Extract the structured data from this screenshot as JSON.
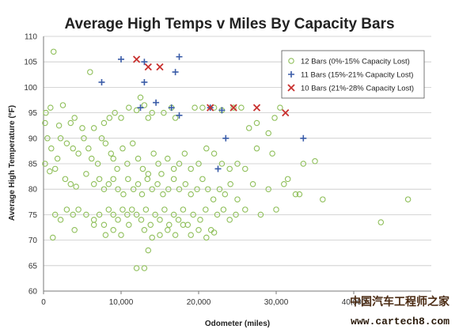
{
  "chart_data": {
    "type": "scatter",
    "title": "Average High Temps v Miles By Capacity Bars",
    "xlabel": "Odometer (miles)",
    "ylabel": "Average High Temperature (°F)",
    "xlim": [
      0,
      50000
    ],
    "ylim": [
      60,
      110
    ],
    "xticks": [
      0,
      10000,
      20000,
      30000,
      40000
    ],
    "xtick_labels": [
      "0",
      "10,000",
      "20,000",
      "30,000",
      "40,000"
    ],
    "yticks": [
      60,
      65,
      70,
      75,
      80,
      85,
      90,
      95,
      100,
      105,
      110
    ],
    "grid": "horizontal",
    "legend_position": "top-right",
    "series": [
      {
        "name": "12 Bars (0%-15% Capacity Lost)",
        "marker": "circle",
        "color": "#8fbf5a",
        "points": [
          [
            1300,
            107
          ],
          [
            6000,
            103
          ],
          [
            2500,
            96.5
          ],
          [
            4000,
            94
          ],
          [
            300,
            95
          ],
          [
            900,
            96
          ],
          [
            200,
            93
          ],
          [
            2000,
            92.5
          ],
          [
            3500,
            93
          ],
          [
            5000,
            92
          ],
          [
            6500,
            92
          ],
          [
            7800,
            93
          ],
          [
            8500,
            94
          ],
          [
            9200,
            95
          ],
          [
            10000,
            94
          ],
          [
            11000,
            96
          ],
          [
            12000,
            95.5
          ],
          [
            12500,
            98
          ],
          [
            13000,
            96.5
          ],
          [
            13500,
            94
          ],
          [
            14000,
            95
          ],
          [
            15500,
            95
          ],
          [
            16500,
            96
          ],
          [
            17000,
            94
          ],
          [
            19500,
            96
          ],
          [
            20500,
            96
          ],
          [
            22000,
            96
          ],
          [
            23000,
            95.5
          ],
          [
            24500,
            96
          ],
          [
            25500,
            96
          ],
          [
            26500,
            92
          ],
          [
            27500,
            93
          ],
          [
            29000,
            91
          ],
          [
            29800,
            94
          ],
          [
            30500,
            96
          ],
          [
            500,
            90
          ],
          [
            1000,
            88
          ],
          [
            1800,
            86
          ],
          [
            2200,
            90
          ],
          [
            3000,
            89
          ],
          [
            3800,
            88
          ],
          [
            4500,
            87
          ],
          [
            5200,
            90
          ],
          [
            5800,
            88
          ],
          [
            6200,
            86
          ],
          [
            7000,
            85
          ],
          [
            7500,
            90
          ],
          [
            8000,
            89
          ],
          [
            8700,
            87
          ],
          [
            9000,
            86
          ],
          [
            9500,
            84
          ],
          [
            10200,
            88
          ],
          [
            10800,
            85
          ],
          [
            11500,
            89
          ],
          [
            12200,
            86
          ],
          [
            12800,
            84
          ],
          [
            13500,
            83
          ],
          [
            14200,
            87
          ],
          [
            14800,
            85
          ],
          [
            15200,
            83
          ],
          [
            16000,
            86
          ],
          [
            16800,
            84
          ],
          [
            17500,
            85
          ],
          [
            18200,
            87
          ],
          [
            19000,
            84
          ],
          [
            20000,
            85
          ],
          [
            21000,
            88
          ],
          [
            22000,
            87
          ],
          [
            23000,
            85
          ],
          [
            24000,
            84
          ],
          [
            25000,
            85
          ],
          [
            26000,
            84
          ],
          [
            27500,
            88
          ],
          [
            29500,
            87
          ],
          [
            31500,
            82
          ],
          [
            33500,
            85
          ],
          [
            35000,
            85.5
          ],
          [
            200,
            85
          ],
          [
            800,
            83.5
          ],
          [
            1500,
            84
          ],
          [
            2800,
            82
          ],
          [
            3500,
            81
          ],
          [
            4200,
            80.5
          ],
          [
            5500,
            83
          ],
          [
            6500,
            81
          ],
          [
            7200,
            82
          ],
          [
            7800,
            80
          ],
          [
            8400,
            81
          ],
          [
            9000,
            82
          ],
          [
            9600,
            80
          ],
          [
            10300,
            79
          ],
          [
            10900,
            82
          ],
          [
            11600,
            80
          ],
          [
            12200,
            81
          ],
          [
            12700,
            79
          ],
          [
            13400,
            82
          ],
          [
            14000,
            80
          ],
          [
            14700,
            81
          ],
          [
            15400,
            79
          ],
          [
            16100,
            80
          ],
          [
            16800,
            82
          ],
          [
            17500,
            80
          ],
          [
            18300,
            81
          ],
          [
            19000,
            79
          ],
          [
            19800,
            80
          ],
          [
            20500,
            82
          ],
          [
            21200,
            80
          ],
          [
            21900,
            78
          ],
          [
            22700,
            80
          ],
          [
            23400,
            79
          ],
          [
            24100,
            81
          ],
          [
            25000,
            78
          ],
          [
            27000,
            81
          ],
          [
            29000,
            80
          ],
          [
            31000,
            81
          ],
          [
            33000,
            79
          ],
          [
            1500,
            75
          ],
          [
            2200,
            74
          ],
          [
            3000,
            76
          ],
          [
            3800,
            75
          ],
          [
            4500,
            76
          ],
          [
            5500,
            75
          ],
          [
            6500,
            74
          ],
          [
            7200,
            75
          ],
          [
            7800,
            73
          ],
          [
            8400,
            76
          ],
          [
            9000,
            75
          ],
          [
            9600,
            74
          ],
          [
            10200,
            76
          ],
          [
            10800,
            75
          ],
          [
            11400,
            76
          ],
          [
            12000,
            75
          ],
          [
            12600,
            74
          ],
          [
            13200,
            76
          ],
          [
            13800,
            73
          ],
          [
            14400,
            75
          ],
          [
            15000,
            74
          ],
          [
            15600,
            76
          ],
          [
            16200,
            73
          ],
          [
            16800,
            75
          ],
          [
            17400,
            74
          ],
          [
            18000,
            76
          ],
          [
            18600,
            73
          ],
          [
            19300,
            75
          ],
          [
            20200,
            74
          ],
          [
            20900,
            76
          ],
          [
            21600,
            72
          ],
          [
            22400,
            75
          ],
          [
            23200,
            76
          ],
          [
            24000,
            74
          ],
          [
            24800,
            75
          ],
          [
            26000,
            76
          ],
          [
            28000,
            75
          ],
          [
            30000,
            76
          ],
          [
            32500,
            79
          ],
          [
            36000,
            78
          ],
          [
            47000,
            78
          ],
          [
            43500,
            73.5
          ],
          [
            1200,
            70.5
          ],
          [
            4000,
            72
          ],
          [
            6500,
            73
          ],
          [
            8000,
            71
          ],
          [
            9000,
            72
          ],
          [
            10000,
            71
          ],
          [
            11000,
            73
          ],
          [
            13000,
            72
          ],
          [
            14000,
            70.5
          ],
          [
            15000,
            71
          ],
          [
            16000,
            72
          ],
          [
            17000,
            71
          ],
          [
            18000,
            73
          ],
          [
            19000,
            71
          ],
          [
            20000,
            72
          ],
          [
            21000,
            70.5
          ],
          [
            22000,
            71.5
          ],
          [
            12000,
            64.5
          ],
          [
            13000,
            64.5
          ],
          [
            13500,
            68
          ]
        ]
      },
      {
        "name": "11 Bars (15%-21% Capacity Lost)",
        "marker": "plus",
        "color": "#3a5ca8",
        "points": [
          [
            10000,
            105.5
          ],
          [
            13000,
            105
          ],
          [
            17500,
            106
          ],
          [
            7500,
            101
          ],
          [
            13000,
            101
          ],
          [
            17000,
            103
          ],
          [
            14500,
            97
          ],
          [
            12500,
            96
          ],
          [
            16500,
            96
          ],
          [
            17500,
            94.5
          ],
          [
            21500,
            96
          ],
          [
            23000,
            95.5
          ],
          [
            23500,
            90
          ],
          [
            33500,
            90
          ],
          [
            22500,
            84
          ]
        ]
      },
      {
        "name": "10 Bars (21%-28% Capacity Lost)",
        "marker": "x",
        "color": "#c8302e",
        "points": [
          [
            12000,
            105.5
          ],
          [
            13500,
            104
          ],
          [
            15000,
            104
          ],
          [
            21500,
            96
          ],
          [
            24500,
            96
          ],
          [
            27500,
            96
          ],
          [
            31200,
            95
          ]
        ]
      }
    ]
  },
  "watermark": {
    "cn": "中国汽车工程师之家",
    "url": "www.cartech8.com"
  }
}
